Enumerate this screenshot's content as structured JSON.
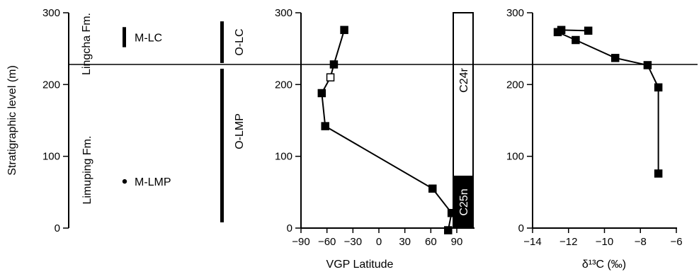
{
  "chart_data": [
    {
      "type": "stratigraphic-column",
      "ylabel": "Stratigraphic level (m)",
      "ylim": [
        0,
        300
      ],
      "yticks": [
        "0",
        "100",
        "200",
        "300"
      ],
      "formations": [
        {
          "name": "Lingcha Fm.",
          "from": 228,
          "to": 300
        },
        {
          "name": "Limuping Fm.",
          "from": 0,
          "to": 228
        }
      ],
      "sample_levels": [
        {
          "label": "M-LC",
          "from": 252,
          "to": 280,
          "kind": "bar"
        },
        {
          "label": "M-LMP",
          "at": 65,
          "kind": "point"
        }
      ],
      "ranges": [
        {
          "label": "O-LC",
          "from": 230,
          "to": 288
        },
        {
          "label": "O-LMP",
          "from": 8,
          "to": 222
        }
      ]
    },
    {
      "type": "line",
      "xlabel": "VGP Latitude",
      "xlim": [
        -90,
        90
      ],
      "xticks": [
        "−90",
        "−60",
        "−30",
        "0",
        "30",
        "60",
        "90"
      ],
      "ylim": [
        0,
        300
      ],
      "yticks": [
        "0",
        "100",
        "200",
        "300"
      ],
      "series": [
        {
          "values": [
            {
              "x": -40,
              "y": 276
            },
            {
              "x": -52,
              "y": 228
            },
            {
              "x": -56,
              "y": 210
            },
            {
              "x": -66,
              "y": 188
            },
            {
              "x": -62,
              "y": 142
            },
            {
              "x": 62,
              "y": 55
            },
            {
              "x": 84,
              "y": 21
            },
            {
              "x": 80,
              "y": -3
            }
          ],
          "open_points": [
            2
          ]
        }
      ],
      "polarity_chrons": [
        {
          "label": "C24r",
          "from": 72,
          "to": 300,
          "fill": "#ffffff"
        },
        {
          "label": "C25n",
          "from": 0,
          "to": 72,
          "fill": "#000000"
        }
      ]
    },
    {
      "type": "line",
      "xlabel": "δ¹³C (‰)",
      "xlim": [
        -14,
        -6
      ],
      "xticks": [
        "−14",
        "−12",
        "−10",
        "−8",
        "−6"
      ],
      "ylim": [
        0,
        300
      ],
      "yticks": [
        "0",
        "100",
        "200",
        "300"
      ],
      "series": [
        {
          "values": [
            {
              "x": -10.9,
              "y": 275
            },
            {
              "x": -12.4,
              "y": 276
            },
            {
              "x": -12.6,
              "y": 273
            },
            {
              "x": -11.6,
              "y": 262
            },
            {
              "x": -9.4,
              "y": 237
            },
            {
              "x": -7.6,
              "y": 227
            },
            {
              "x": -7.0,
              "y": 196
            },
            {
              "x": -7.0,
              "y": 76
            }
          ]
        }
      ]
    }
  ],
  "boundary_level": 228
}
